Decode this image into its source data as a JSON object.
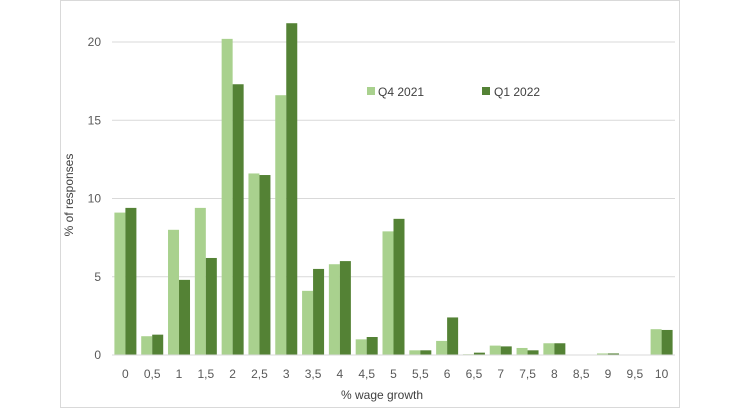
{
  "chart_data": {
    "type": "bar",
    "title": "",
    "xlabel": "% wage growth",
    "ylabel": "% of responses",
    "ylim": [
      0,
      22
    ],
    "yticks": [
      "0",
      "5",
      "10",
      "15",
      "20"
    ],
    "categories": [
      "0",
      "0,5",
      "1",
      "1,5",
      "2",
      "2,5",
      "3",
      "3,5",
      "4",
      "4,5",
      "5",
      "5,5",
      "6",
      "6,5",
      "7",
      "7,5",
      "8",
      "8,5",
      "9",
      "9,5",
      "10"
    ],
    "series": [
      {
        "name": "Q4 2021",
        "color": "#a9d18e",
        "values": [
          9.1,
          1.2,
          8.0,
          9.4,
          20.2,
          11.6,
          16.6,
          4.1,
          5.8,
          1.0,
          7.9,
          0.3,
          0.9,
          0.05,
          0.6,
          0.45,
          0.75,
          0.0,
          0.1,
          0.0,
          1.65
        ]
      },
      {
        "name": "Q1 2022",
        "color": "#548235",
        "values": [
          9.4,
          1.3,
          4.8,
          6.2,
          17.3,
          11.5,
          21.2,
          5.5,
          6.0,
          1.15,
          8.7,
          0.3,
          2.4,
          0.15,
          0.55,
          0.3,
          0.75,
          0.0,
          0.1,
          0.0,
          1.6
        ]
      }
    ],
    "grid": true,
    "legend": "top-center"
  }
}
